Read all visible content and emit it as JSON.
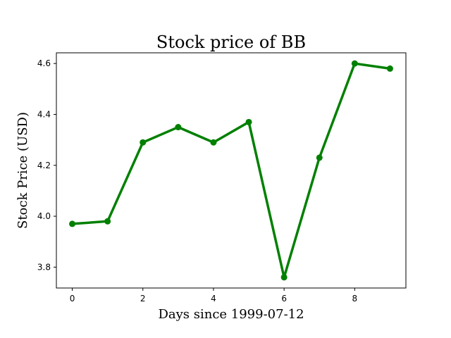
{
  "chart_data": {
    "type": "line",
    "title": "Stock price of BB",
    "xlabel": "Days since 1999-07-12",
    "ylabel": "Stock Price (USD)",
    "x": [
      0,
      1,
      2,
      3,
      4,
      5,
      6,
      7,
      8,
      9
    ],
    "series": [
      {
        "values": [
          3.97,
          3.98,
          4.29,
          4.35,
          4.29,
          4.37,
          3.76,
          4.23,
          4.6,
          4.58
        ]
      }
    ],
    "xlim": [
      -0.45,
      9.45
    ],
    "ylim": [
      3.718,
      4.642
    ],
    "xticks": [
      0,
      2,
      4,
      6,
      8
    ],
    "xtick_labels": [
      "0",
      "2",
      "4",
      "6",
      "8"
    ],
    "yticks": [
      3.8,
      4.0,
      4.2,
      4.4,
      4.6
    ],
    "ytick_labels": [
      "3.8",
      "4.0",
      "4.2",
      "4.4",
      "4.6"
    ],
    "line_color": "#008000",
    "marker": "circle",
    "grid": false,
    "legend": "none"
  }
}
